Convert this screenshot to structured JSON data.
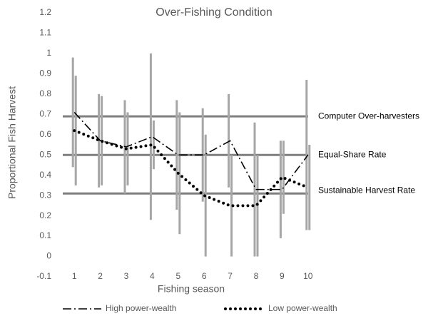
{
  "chart_data": {
    "type": "line",
    "title": "Over-Fishing Condition",
    "x_label": "Fishing season",
    "y_label": "Proportional Fish Harvest",
    "categories": [
      "1",
      "2",
      "3",
      "4",
      "5",
      "6",
      "7",
      "8",
      "9",
      "10"
    ],
    "series": [
      {
        "name": "High power-wealth",
        "color": "#000000",
        "values": [
          0.71,
          0.57,
          0.54,
          0.59,
          0.5,
          0.5,
          0.57,
          0.33,
          0.33,
          0.5
        ],
        "errors": [
          0.27,
          0.23,
          0.23,
          0.41,
          0.27,
          0.23,
          0.23,
          0.33,
          0.24,
          0.37
        ]
      },
      {
        "name": "Low power-wealth",
        "color": "#000000",
        "values": [
          0.62,
          0.57,
          0.53,
          0.55,
          0.41,
          0.3,
          0.25,
          0.25,
          0.39,
          0.34
        ],
        "errors": [
          0.27,
          0.22,
          0.18,
          0.12,
          0.3,
          0.3,
          0.25,
          0.25,
          0.18,
          0.21
        ]
      }
    ],
    "error_bar_color": "#a6a6a6",
    "reference_lines": [
      {
        "label": "Computer Over-harvesters",
        "value": 0.69
      },
      {
        "label": "Equal-Share Rate",
        "value": 0.5
      },
      {
        "label": "Sustainable Harvest Rate",
        "value": 0.31
      }
    ],
    "reference_color": "#7f7f7f",
    "ylim": [
      -0.1,
      1.2
    ],
    "yticks": [
      -0.1,
      0,
      0.1,
      0.2,
      0.3,
      0.4,
      0.5,
      0.6,
      0.7,
      0.8,
      0.9,
      1,
      1.1,
      1.2
    ],
    "legend": "bottom"
  }
}
